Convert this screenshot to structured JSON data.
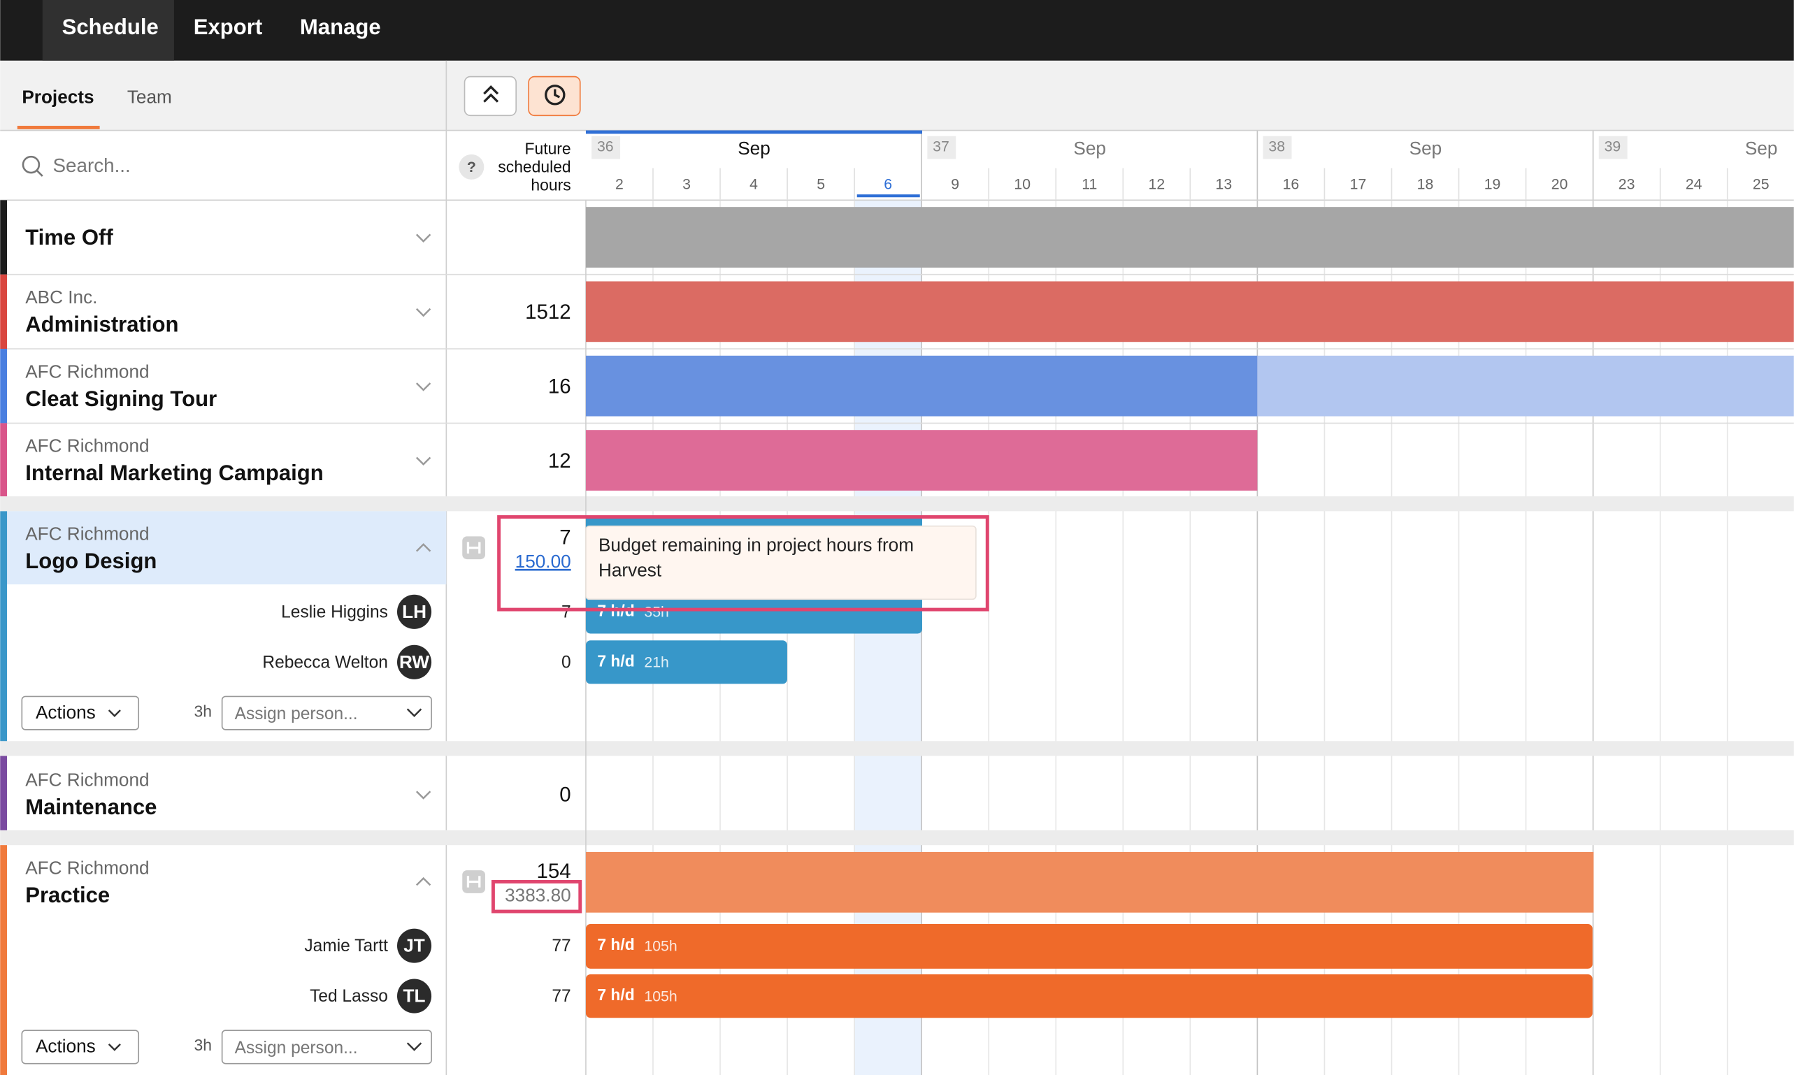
{
  "nav": {
    "items": [
      "Schedule",
      "Export",
      "Manage"
    ]
  },
  "sidebar_tabs": [
    "Projects",
    "Team"
  ],
  "search_placeholder": "Search...",
  "hours_header": {
    "help": "?",
    "lines": [
      "Future",
      "scheduled",
      "hours"
    ]
  },
  "weeks": [
    {
      "number": "36",
      "month": "Sep",
      "days": [
        "2",
        "3",
        "4",
        "5",
        "6"
      ]
    },
    {
      "number": "37",
      "month": "Sep",
      "days": [
        "9",
        "10",
        "11",
        "12",
        "13"
      ]
    },
    {
      "number": "38",
      "month": "Sep",
      "days": [
        "16",
        "17",
        "18",
        "19",
        "20"
      ]
    },
    {
      "number": "39",
      "month": "Sep",
      "days": [
        "23",
        "24",
        "25"
      ]
    }
  ],
  "rows": [
    {
      "project": "Time Off"
    },
    {
      "client": "ABC Inc.",
      "project": "Administration",
      "hours": 1512
    },
    {
      "client": "AFC Richmond",
      "project": "Cleat Signing Tour",
      "hours": 16
    },
    {
      "client": "AFC Richmond",
      "project": "Internal Marketing Campaign",
      "hours": 12
    },
    {
      "client": "AFC Richmond",
      "project": "Logo Design",
      "hours": 7,
      "budget": "150.00",
      "people": [
        {
          "name": "Leslie Higgins",
          "initials": "LH",
          "hours": 7,
          "rate": "7 h/d",
          "total": "35h"
        },
        {
          "name": "Rebecca Welton",
          "initials": "RW",
          "hours": 0,
          "rate": "7 h/d",
          "total": "21h"
        }
      ],
      "actions": "Actions",
      "default_hours": "3h",
      "assign_placeholder": "Assign person..."
    },
    {
      "client": "AFC Richmond",
      "project": "Maintenance",
      "hours": 0
    },
    {
      "client": "AFC Richmond",
      "project": "Practice",
      "hours": 154,
      "budget": "3383.80",
      "people": [
        {
          "name": "Jamie Tartt",
          "initials": "JT",
          "hours": 77,
          "rate": "7 h/d",
          "total": "105h"
        },
        {
          "name": "Ted Lasso",
          "initials": "TL",
          "hours": 77,
          "rate": "7 h/d",
          "total": "105h"
        }
      ],
      "actions": "Actions",
      "default_hours": "3h",
      "assign_placeholder": "Assign person..."
    }
  ],
  "tooltip": "Budget remaining in project hours from Harvest"
}
